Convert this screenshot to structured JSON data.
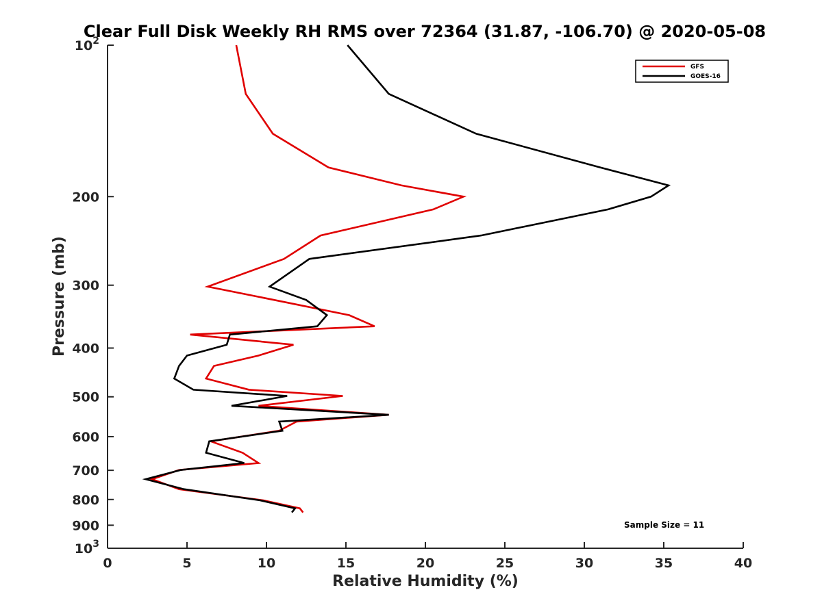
{
  "chart_data": {
    "type": "line",
    "title": "Clear Full Disk Weekly RH RMS over 72364 (31.87, -106.70) @ 2020-05-08",
    "xlabel": "Relative Humidity (%)",
    "ylabel": "Pressure (mb)",
    "xlim": [
      0,
      40
    ],
    "ylim": [
      100,
      1000
    ],
    "y_scale": "log",
    "y_reversed": true,
    "x_ticks": [
      0,
      5,
      10,
      15,
      20,
      25,
      30,
      35,
      40
    ],
    "x_tick_labels": [
      "0",
      "5",
      "10",
      "15",
      "20",
      "25",
      "30",
      "35",
      "40"
    ],
    "y_ticks": [
      100,
      200,
      300,
      400,
      500,
      600,
      700,
      800,
      900,
      1000
    ],
    "y_tick_labels": [
      {
        "base": "10",
        "exp": "2"
      },
      {
        "base": "200",
        "exp": ""
      },
      {
        "base": "300",
        "exp": ""
      },
      {
        "base": "400",
        "exp": ""
      },
      {
        "base": "500",
        "exp": ""
      },
      {
        "base": "600",
        "exp": ""
      },
      {
        "base": "700",
        "exp": ""
      },
      {
        "base": "800",
        "exp": ""
      },
      {
        "base": "900",
        "exp": ""
      },
      {
        "base": "10",
        "exp": "3"
      }
    ],
    "grid": false,
    "legend_position": "top-right",
    "series": [
      {
        "name": "GFS",
        "color": "#e00000",
        "points": [
          [
            8.1,
            100
          ],
          [
            8.7,
            125
          ],
          [
            10.4,
            150
          ],
          [
            13.9,
            175
          ],
          [
            18.5,
            190
          ],
          [
            22.4,
            200
          ],
          [
            20.5,
            212
          ],
          [
            13.4,
            239
          ],
          [
            11.1,
            266
          ],
          [
            6.3,
            302
          ],
          [
            10.5,
            321
          ],
          [
            15.2,
            344
          ],
          [
            16.8,
            362
          ],
          [
            5.2,
            376
          ],
          [
            11.7,
            394
          ],
          [
            9.5,
            414
          ],
          [
            6.7,
            434
          ],
          [
            6.2,
            460
          ],
          [
            8.9,
            484
          ],
          [
            14.8,
            498
          ],
          [
            9.5,
            521
          ],
          [
            17.7,
            543
          ],
          [
            11.9,
            560
          ],
          [
            10.8,
            584
          ],
          [
            6.5,
            613
          ],
          [
            8.5,
            646
          ],
          [
            9.5,
            677
          ],
          [
            4.5,
            699
          ],
          [
            2.8,
            729
          ],
          [
            4.5,
            763
          ],
          [
            9.8,
            803
          ],
          [
            12.1,
            833
          ],
          [
            12.3,
            849
          ]
        ]
      },
      {
        "name": "GOES-16",
        "color": "#000000",
        "points": [
          [
            15.1,
            100
          ],
          [
            17.7,
            125
          ],
          [
            23.2,
            150
          ],
          [
            31.0,
            175
          ],
          [
            35.3,
            190
          ],
          [
            34.2,
            200
          ],
          [
            31.5,
            212
          ],
          [
            23.5,
            239
          ],
          [
            12.7,
            266
          ],
          [
            10.2,
            302
          ],
          [
            12.5,
            321
          ],
          [
            13.8,
            344
          ],
          [
            13.2,
            362
          ],
          [
            7.7,
            376
          ],
          [
            7.5,
            394
          ],
          [
            5.0,
            414
          ],
          [
            4.5,
            434
          ],
          [
            4.2,
            460
          ],
          [
            5.4,
            484
          ],
          [
            11.3,
            498
          ],
          [
            7.8,
            521
          ],
          [
            17.7,
            543
          ],
          [
            10.8,
            560
          ],
          [
            11.0,
            584
          ],
          [
            6.4,
            613
          ],
          [
            6.2,
            646
          ],
          [
            8.6,
            677
          ],
          [
            4.6,
            699
          ],
          [
            2.4,
            729
          ],
          [
            4.8,
            763
          ],
          [
            9.6,
            803
          ],
          [
            11.8,
            833
          ],
          [
            11.6,
            849
          ]
        ]
      }
    ],
    "annotation": "Sample Size = 11"
  }
}
